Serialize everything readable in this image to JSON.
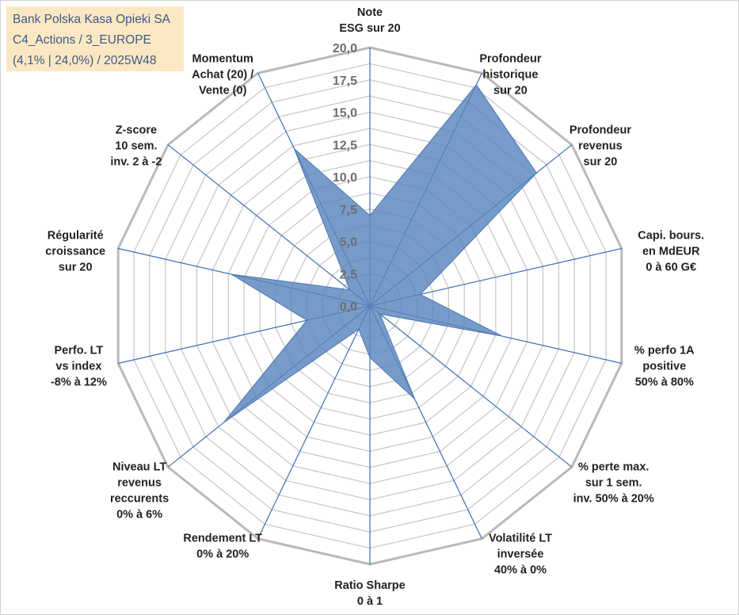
{
  "title_box": {
    "lines": [
      "Bank Polska Kasa Opieki SA",
      "C4_Actions / 3_EUROPE",
      "(4,1% | 24,0%) / 2025W48"
    ]
  },
  "colors": {
    "fill": "#5a86bd",
    "spoke": "#3b6fb6",
    "grid": "#c8c8c8",
    "title_bg": "#fbe7c2",
    "title_text": "#3d5a8a"
  },
  "chart_data": {
    "type": "radar",
    "title": "Bank Polska Kasa Opieki SA",
    "rlim": [
      0,
      20
    ],
    "tick_values": [
      0,
      2.5,
      5,
      7.5,
      10,
      12.5,
      15,
      17.5,
      20
    ],
    "tick_labels": [
      "0,0",
      "2,5",
      "5,0",
      "7,5",
      "10,0",
      "12,5",
      "15,0",
      "17,5",
      "20,0"
    ],
    "axes": [
      {
        "label": [
          "Note",
          "ESG sur 20"
        ]
      },
      {
        "label": [
          "Profondeur",
          "historique",
          "sur 20"
        ]
      },
      {
        "label": [
          "Profondeur",
          "revenus",
          "sur 20"
        ]
      },
      {
        "label": [
          "Capi. bours.",
          "en MdEUR",
          "0 à 60 G€"
        ]
      },
      {
        "label": [
          "% perfo 1A",
          "positive",
          "50% à 80%"
        ]
      },
      {
        "label": [
          "% perte max.",
          "sur 1 sem.",
          "inv. 50% à 20%"
        ]
      },
      {
        "label": [
          "Volatilité LT",
          "inversée",
          "40% à 0%"
        ]
      },
      {
        "label": [
          "Ratio Sharpe",
          "0 à 1"
        ]
      },
      {
        "label": [
          "Rendement LT",
          "0% à 20%"
        ]
      },
      {
        "label": [
          "Niveau LT",
          "revenus",
          "reccurents",
          "0% à 6%"
        ]
      },
      {
        "label": [
          "Perfo. LT",
          "vs index",
          "-8% à 12%"
        ]
      },
      {
        "label": [
          "Régularité",
          "croissance",
          "sur 20"
        ]
      },
      {
        "label": [
          "Z-score",
          "10 sem.",
          "inv. 2 à -2"
        ]
      },
      {
        "label": [
          "Momentum",
          "Achat (20) /",
          "Vente (0)"
        ]
      }
    ],
    "series": [
      {
        "name": "Bank Polska Kasa Opieki SA",
        "values": [
          7.0,
          19.0,
          16.5,
          4.0,
          10.5,
          1.0,
          8.0,
          4.0,
          2.0,
          14.5,
          5.0,
          11.0,
          2.0,
          13.5
        ]
      }
    ]
  }
}
